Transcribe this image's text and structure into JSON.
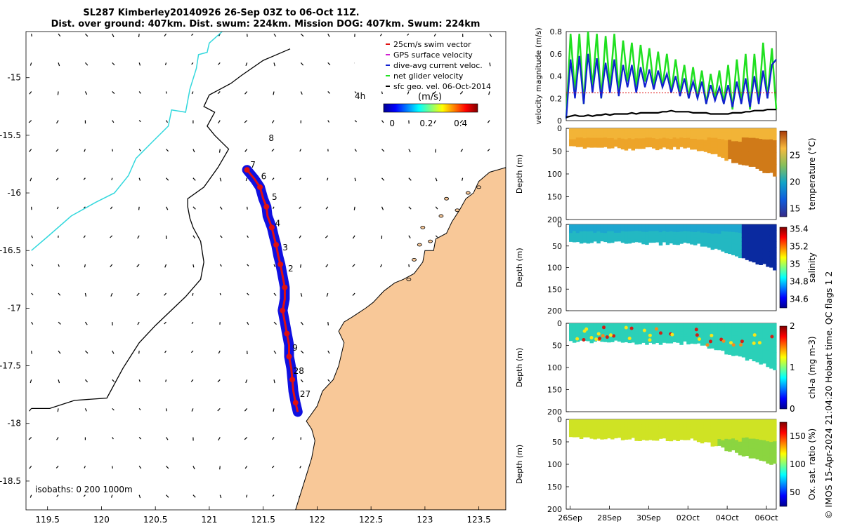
{
  "title": {
    "line1": "SL287 Kimberley20140926 26-Sep 03Z to 06-Oct 11Z.",
    "line2": "Dist. over ground: 407km. Dist. swum: 224km. Mission DOG: 407km. Swum: 224km"
  },
  "credit": "© IMOS 15-Apr-2024 21:04:20 Hobart time. QC flags 1  2",
  "colors": {
    "land": "#f8c898",
    "track": "#1010e0",
    "glider": "#e01010",
    "cyan": "#33d8dd",
    "green": "#20e020",
    "blue": "#1020d0"
  },
  "chart_data": [
    {
      "type": "scatter",
      "name": "map",
      "xlim": [
        119.3,
        123.75
      ],
      "ylim": [
        -18.75,
        -14.6
      ],
      "x_ticks": [
        "119.5",
        "120",
        "120.5",
        "121",
        "121.5",
        "122",
        "122.5",
        "123",
        "123.5"
      ],
      "y_ticks": [
        "-15",
        "-15.5",
        "-16",
        "-16.5",
        "-17",
        "-17.5",
        "-18",
        "-18.5"
      ],
      "x_tick_values": [
        119.5,
        120,
        120.5,
        121,
        121.5,
        122,
        122.5,
        123,
        123.5
      ],
      "y_tick_values": [
        -15,
        -15.5,
        -16,
        -16.5,
        -17,
        -17.5,
        -18,
        -18.5
      ],
      "legend": [
        {
          "label": "25cm/s swim vector",
          "color": "#e01010"
        },
        {
          "label": "GPS surface velocity",
          "color": "#d020d0"
        },
        {
          "label": "dive-avg current veloc.",
          "color": "#1020d0"
        },
        {
          "label": "net glider velocity",
          "color": "#20e020"
        },
        {
          "label": "sfc geo. vel. 06-Oct-2014",
          "color": "#000000"
        }
      ],
      "legend_note": "4h",
      "colorbar": {
        "label": "(m/s)",
        "ticks": [
          "0",
          "0.2",
          "0.4"
        ],
        "tick_values": [
          0,
          0.2,
          0.4
        ],
        "range": [
          -0.05,
          0.5
        ]
      },
      "isobaths_label": "isobaths: 0   200  1000m",
      "track": [
        [
          121.35,
          -15.8
        ],
        [
          121.42,
          -15.88
        ],
        [
          121.47,
          -15.95
        ],
        [
          121.5,
          -16.05
        ],
        [
          121.53,
          -16.12
        ],
        [
          121.54,
          -16.2
        ],
        [
          121.58,
          -16.3
        ],
        [
          121.6,
          -16.38
        ],
        [
          121.62,
          -16.45
        ],
        [
          121.64,
          -16.55
        ],
        [
          121.66,
          -16.62
        ],
        [
          121.68,
          -16.72
        ],
        [
          121.7,
          -16.82
        ],
        [
          121.7,
          -16.92
        ],
        [
          121.68,
          -17.02
        ],
        [
          121.7,
          -17.12
        ],
        [
          121.72,
          -17.22
        ],
        [
          121.74,
          -17.32
        ],
        [
          121.74,
          -17.42
        ],
        [
          121.76,
          -17.52
        ],
        [
          121.77,
          -17.62
        ],
        [
          121.78,
          -17.72
        ],
        [
          121.8,
          -17.82
        ],
        [
          121.82,
          -17.9
        ]
      ],
      "day_labels": [
        {
          "text": "8",
          "lon": 121.55,
          "lat": -15.55
        },
        {
          "text": "7",
          "lon": 121.38,
          "lat": -15.78
        },
        {
          "text": "6",
          "lon": 121.48,
          "lat": -15.88
        },
        {
          "text": "5",
          "lon": 121.58,
          "lat": -16.06
        },
        {
          "text": "4",
          "lon": 121.61,
          "lat": -16.29
        },
        {
          "text": "3",
          "lon": 121.68,
          "lat": -16.5
        },
        {
          "text": "2",
          "lon": 121.73,
          "lat": -16.68
        },
        {
          "text": "9",
          "lon": 121.77,
          "lat": -17.37
        },
        {
          "text": "28",
          "lon": 121.78,
          "lat": -17.57
        },
        {
          "text": "27",
          "lon": 121.84,
          "lat": -17.77
        }
      ],
      "isobath_200": [
        [
          121.75,
          -14.75
        ],
        [
          121.5,
          -14.85
        ],
        [
          121.3,
          -14.98
        ],
        [
          121.2,
          -15.05
        ],
        [
          121.0,
          -15.15
        ],
        [
          120.95,
          -15.25
        ],
        [
          121.05,
          -15.3
        ],
        [
          120.98,
          -15.42
        ],
        [
          121.05,
          -15.5
        ],
        [
          121.18,
          -15.62
        ],
        [
          121.08,
          -15.78
        ],
        [
          120.95,
          -15.95
        ],
        [
          120.8,
          -16.05
        ],
        [
          120.8,
          -16.12
        ],
        [
          120.82,
          -16.22
        ],
        [
          120.85,
          -16.3
        ],
        [
          120.92,
          -16.42
        ],
        [
          120.95,
          -16.6
        ],
        [
          120.92,
          -16.75
        ],
        [
          120.78,
          -16.9
        ],
        [
          120.5,
          -17.15
        ],
        [
          120.35,
          -17.3
        ],
        [
          120.2,
          -17.52
        ],
        [
          120.05,
          -17.78
        ],
        [
          119.75,
          -17.8
        ],
        [
          119.52,
          -17.87
        ],
        [
          119.35,
          -17.87
        ]
      ],
      "isobath_1000": [
        [
          121.12,
          -14.6
        ],
        [
          121.0,
          -14.7
        ],
        [
          120.98,
          -14.78
        ],
        [
          120.9,
          -14.8
        ],
        [
          120.88,
          -14.92
        ],
        [
          120.82,
          -15.1
        ],
        [
          120.78,
          -15.3
        ],
        [
          120.65,
          -15.28
        ],
        [
          120.62,
          -15.42
        ],
        [
          120.48,
          -15.55
        ],
        [
          120.32,
          -15.7
        ],
        [
          120.25,
          -15.85
        ],
        [
          120.12,
          -16.0
        ],
        [
          119.95,
          -16.08
        ],
        [
          119.72,
          -16.2
        ],
        [
          119.5,
          -16.38
        ],
        [
          119.35,
          -16.5
        ]
      ],
      "coastline": [
        [
          123.75,
          -15.78
        ],
        [
          123.6,
          -15.82
        ],
        [
          123.5,
          -15.9
        ],
        [
          123.45,
          -16.0
        ],
        [
          123.38,
          -16.05
        ],
        [
          123.32,
          -16.15
        ],
        [
          123.25,
          -16.25
        ],
        [
          123.2,
          -16.35
        ],
        [
          123.1,
          -16.4
        ],
        [
          123.08,
          -16.5
        ],
        [
          123.0,
          -16.5
        ],
        [
          122.98,
          -16.6
        ],
        [
          122.9,
          -16.7
        ],
        [
          122.8,
          -16.75
        ],
        [
          122.72,
          -16.78
        ],
        [
          122.62,
          -16.85
        ],
        [
          122.52,
          -16.95
        ],
        [
          122.45,
          -17.0
        ],
        [
          122.32,
          -17.08
        ],
        [
          122.25,
          -17.12
        ],
        [
          122.2,
          -17.2
        ],
        [
          122.25,
          -17.3
        ],
        [
          122.22,
          -17.42
        ],
        [
          122.2,
          -17.5
        ],
        [
          122.15,
          -17.62
        ],
        [
          122.05,
          -17.72
        ],
        [
          122.0,
          -17.85
        ],
        [
          121.9,
          -17.98
        ],
        [
          121.95,
          -18.05
        ],
        [
          121.98,
          -18.15
        ],
        [
          121.95,
          -18.3
        ],
        [
          121.9,
          -18.45
        ],
        [
          121.85,
          -18.6
        ],
        [
          121.8,
          -18.75
        ],
        [
          123.75,
          -18.75
        ]
      ]
    },
    {
      "type": "line",
      "name": "velocity-magnitude",
      "ylabel": "velocity magnitude (m/s)",
      "ylim": [
        0,
        0.8
      ],
      "y_ticks": [
        "0",
        "0.2",
        "0.4",
        "0.6",
        "0.8"
      ],
      "y_tick_values": [
        0,
        0.2,
        0.4,
        0.6,
        0.8
      ],
      "xlim": [
        25.8,
        36.5
      ],
      "series": [
        {
          "name": "net glider velocity",
          "color": "#20e020",
          "values": [
            0.02,
            0.78,
            0.25,
            0.78,
            0.15,
            0.8,
            0.3,
            0.78,
            0.2,
            0.76,
            0.3,
            0.78,
            0.25,
            0.72,
            0.35,
            0.7,
            0.3,
            0.68,
            0.35,
            0.65,
            0.3,
            0.62,
            0.3,
            0.6,
            0.25,
            0.55,
            0.25,
            0.5,
            0.2,
            0.48,
            0.2,
            0.45,
            0.15,
            0.42,
            0.2,
            0.45,
            0.15,
            0.5,
            0.1,
            0.55,
            0.15,
            0.6,
            0.1,
            0.6,
            0.15,
            0.7,
            0.2,
            0.65,
            0.1
          ]
        },
        {
          "name": "dive-avg current veloc.",
          "color": "#1020d0",
          "values": [
            0.02,
            0.55,
            0.2,
            0.58,
            0.15,
            0.6,
            0.25,
            0.56,
            0.2,
            0.52,
            0.25,
            0.55,
            0.22,
            0.5,
            0.3,
            0.5,
            0.25,
            0.48,
            0.3,
            0.46,
            0.28,
            0.45,
            0.3,
            0.42,
            0.25,
            0.4,
            0.22,
            0.38,
            0.2,
            0.35,
            0.2,
            0.35,
            0.15,
            0.32,
            0.18,
            0.3,
            0.15,
            0.32,
            0.12,
            0.35,
            0.15,
            0.38,
            0.12,
            0.4,
            0.15,
            0.45,
            0.2,
            0.5,
            0.55
          ]
        },
        {
          "name": "swim",
          "color": "#e01010",
          "values": [
            0.25,
            0.25,
            0.25,
            0.25,
            0.25,
            0.25,
            0.25,
            0.25,
            0.25,
            0.25,
            0.25,
            0.25,
            0.25,
            0.25,
            0.25,
            0.25,
            0.25,
            0.25,
            0.25,
            0.25,
            0.25,
            0.25,
            0.25,
            0.25,
            0.25,
            0.25,
            0.25,
            0.25,
            0.25,
            0.25,
            0.25,
            0.25,
            0.25,
            0.25,
            0.25,
            0.25,
            0.25,
            0.25,
            0.25,
            0.25,
            0.25,
            0.25,
            0.25,
            0.25,
            0.25,
            0.25,
            0.25,
            0.25,
            0.25
          ]
        },
        {
          "name": "sfc geo. vel.",
          "color": "#000000",
          "values": [
            0.03,
            0.04,
            0.05,
            0.04,
            0.04,
            0.05,
            0.04,
            0.05,
            0.05,
            0.06,
            0.05,
            0.06,
            0.06,
            0.06,
            0.06,
            0.07,
            0.06,
            0.07,
            0.07,
            0.07,
            0.07,
            0.07,
            0.08,
            0.08,
            0.09,
            0.08,
            0.08,
            0.08,
            0.08,
            0.07,
            0.07,
            0.07,
            0.07,
            0.06,
            0.06,
            0.06,
            0.06,
            0.06,
            0.07,
            0.07,
            0.07,
            0.08,
            0.08,
            0.09,
            0.09,
            0.09,
            0.1,
            0.1,
            0.1
          ]
        }
      ]
    },
    {
      "type": "heatmap",
      "name": "temperature",
      "cblabel": "temperature (°C)",
      "ylabel": "Depth (m)",
      "ylim": [
        200,
        0
      ],
      "y_ticks": [
        "0",
        "50",
        "100",
        "150",
        "200"
      ],
      "cb_ticks": [
        "15",
        "20",
        "25"
      ],
      "cb_tick_values": [
        15,
        20,
        25
      ],
      "cb_range": [
        13.5,
        29.5
      ],
      "cmap": "parula-ish",
      "surface_value": 27.8,
      "deep_value": 26.5
    },
    {
      "type": "heatmap",
      "name": "salinity",
      "cblabel": "salinity",
      "ylabel": "Depth (m)",
      "ylim": [
        200,
        0
      ],
      "y_ticks": [
        "0",
        "50",
        "100",
        "150",
        "200"
      ],
      "cb_ticks": [
        "34.6",
        "34.8",
        "35",
        "35.2",
        "35.4"
      ],
      "cb_tick_values": [
        34.6,
        34.8,
        35,
        35.2,
        35.4
      ],
      "cb_range": [
        34.5,
        35.42
      ]
    },
    {
      "type": "heatmap",
      "name": "chl-a",
      "cblabel": "chl-a (mg m-3)",
      "ylabel": "Depth (m)",
      "ylim": [
        200,
        0
      ],
      "y_ticks": [
        "0",
        "50",
        "100",
        "150",
        "200"
      ],
      "cb_ticks": [
        "0",
        "1",
        "2"
      ],
      "cb_tick_values": [
        0,
        1,
        2
      ],
      "cb_range": [
        0,
        2
      ]
    },
    {
      "type": "heatmap",
      "name": "oxygen",
      "cblabel": "Ox. sat. ratio (%)",
      "ylabel": "Depth (m)",
      "ylim": [
        200,
        0
      ],
      "y_ticks": [
        "0",
        "50",
        "100",
        "150",
        "200"
      ],
      "cb_ticks": [
        "50",
        "100",
        "150"
      ],
      "cb_tick_values": [
        50,
        100,
        150
      ],
      "cb_range": [
        25,
        175
      ],
      "x_ticks": [
        "26Sep",
        "28Sep",
        "30Sep",
        "02Oct",
        "04Oct",
        "06Oct"
      ],
      "x_tick_values": [
        26,
        28,
        30,
        32,
        34,
        36
      ]
    }
  ]
}
